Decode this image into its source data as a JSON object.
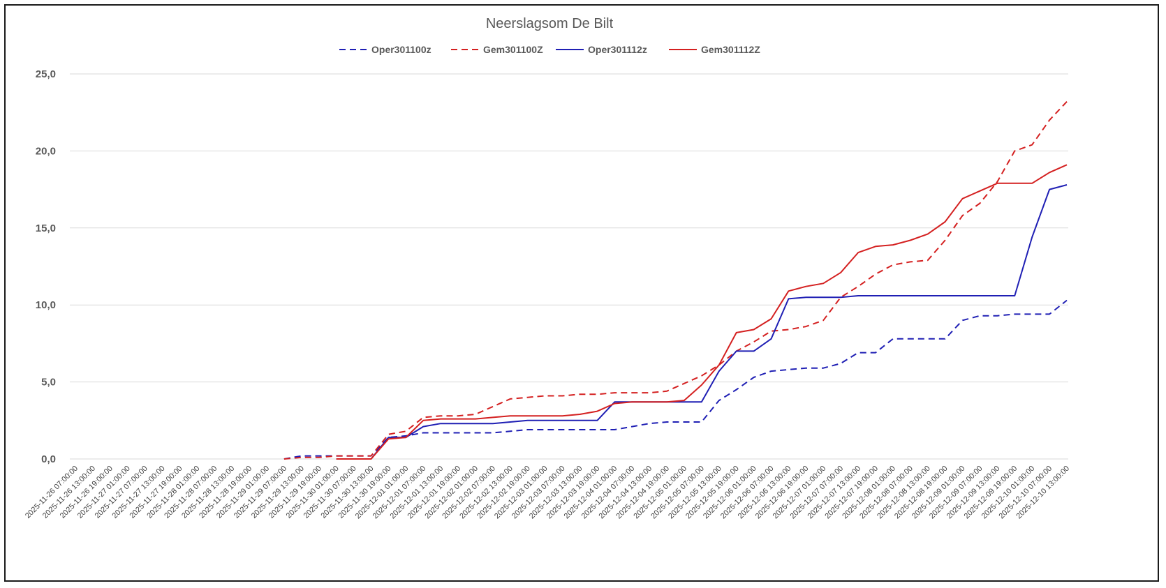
{
  "chart_data": {
    "type": "line",
    "title": "Neerslagsom De Bilt",
    "xlabel": "",
    "ylabel": "",
    "ylim": [
      0,
      25
    ],
    "yticks": [
      "0,0",
      "5,0",
      "10,0",
      "15,0",
      "20,0",
      "25,0"
    ],
    "grid": true,
    "legend_position": "top",
    "categories": [
      "2025-11-26 07:00:00",
      "2025-11-26 13:00:00",
      "2025-11-26 19:00:00",
      "2025-11-27 01:00:00",
      "2025-11-27 07:00:00",
      "2025-11-27 13:00:00",
      "2025-11-27 19:00:00",
      "2025-11-28 01:00:00",
      "2025-11-28 07:00:00",
      "2025-11-28 13:00:00",
      "2025-11-28 19:00:00",
      "2025-11-29 01:00:00",
      "2025-11-29 07:00:00",
      "2025-11-29 13:00:00",
      "2025-11-29 19:00:00",
      "2025-11-30 01:00:00",
      "2025-11-30 07:00:00",
      "2025-11-30 13:00:00",
      "2025-11-30 19:00:00",
      "2025-12-01 01:00:00",
      "2025-12-01 07:00:00",
      "2025-12-01 13:00:00",
      "2025-12-01 19:00:00",
      "2025-12-02 01:00:00",
      "2025-12-02 07:00:00",
      "2025-12-02 13:00:00",
      "2025-12-02 19:00:00",
      "2025-12-03 01:00:00",
      "2025-12-03 07:00:00",
      "2025-12-03 13:00:00",
      "2025-12-03 19:00:00",
      "2025-12-04 01:00:00",
      "2025-12-04 07:00:00",
      "2025-12-04 13:00:00",
      "2025-12-04 19:00:00",
      "2025-12-05 01:00:00",
      "2025-12-05 07:00:00",
      "2025-12-05 13:00:00",
      "2025-12-05 19:00:00",
      "2025-12-06 01:00:00",
      "2025-12-06 07:00:00",
      "2025-12-06 13:00:00",
      "2025-12-06 19:00:00",
      "2025-12-07 01:00:00",
      "2025-12-07 07:00:00",
      "2025-12-07 13:00:00",
      "2025-12-07 19:00:00",
      "2025-12-08 01:00:00",
      "2025-12-08 07:00:00",
      "2025-12-08 13:00:00",
      "2025-12-08 19:00:00",
      "2025-12-09 01:00:00",
      "2025-12-09 07:00:00",
      "2025-12-09 13:00:00",
      "2025-12-09 19:00:00",
      "2025-12-10 01:00:00",
      "2025-12-10 07:00:00",
      "2025-12-10 13:00:00"
    ],
    "series": [
      {
        "name": "Oper301100z",
        "color": "#1f1fb4",
        "style": "dashed",
        "values": [
          null,
          null,
          null,
          null,
          null,
          null,
          null,
          null,
          null,
          null,
          null,
          null,
          0.0,
          0.2,
          0.2,
          0.2,
          0.2,
          0.2,
          1.4,
          1.5,
          1.7,
          1.7,
          1.7,
          1.7,
          1.7,
          1.8,
          1.9,
          1.9,
          1.9,
          1.9,
          1.9,
          1.9,
          2.1,
          2.3,
          2.4,
          2.4,
          2.4,
          3.8,
          4.5,
          5.3,
          5.7,
          5.8,
          5.9,
          5.9,
          6.2,
          6.9,
          6.9,
          7.8,
          7.8,
          7.8,
          7.8,
          9.0,
          9.3,
          9.3,
          9.4,
          9.4,
          9.4,
          10.3
        ]
      },
      {
        "name": "Gem301100Z",
        "color": "#d42020",
        "style": "dashed",
        "values": [
          null,
          null,
          null,
          null,
          null,
          null,
          null,
          null,
          null,
          null,
          null,
          null,
          0.0,
          0.1,
          0.1,
          0.2,
          0.2,
          0.2,
          1.6,
          1.8,
          2.7,
          2.8,
          2.8,
          2.9,
          3.4,
          3.9,
          4.0,
          4.1,
          4.1,
          4.2,
          4.2,
          4.3,
          4.3,
          4.3,
          4.4,
          4.9,
          5.4,
          6.1,
          7.0,
          7.6,
          8.3,
          8.4,
          8.6,
          9.0,
          10.5,
          11.2,
          12.0,
          12.6,
          12.8,
          12.9,
          14.2,
          15.8,
          16.6,
          18.0,
          20.0,
          20.4,
          22.0,
          23.2
        ]
      },
      {
        "name": "Oper301112z",
        "color": "#1f1fb4",
        "style": "solid",
        "values": [
          null,
          null,
          null,
          null,
          null,
          null,
          null,
          null,
          null,
          null,
          null,
          null,
          null,
          null,
          null,
          0.0,
          0.0,
          0.0,
          1.4,
          1.4,
          2.1,
          2.3,
          2.3,
          2.3,
          2.3,
          2.4,
          2.5,
          2.5,
          2.5,
          2.5,
          2.5,
          3.7,
          3.7,
          3.7,
          3.7,
          3.7,
          3.7,
          5.7,
          7.0,
          7.0,
          7.8,
          10.4,
          10.5,
          10.5,
          10.5,
          10.6,
          10.6,
          10.6,
          10.6,
          10.6,
          10.6,
          10.6,
          10.6,
          10.6,
          10.6,
          14.4,
          17.5,
          17.8
        ]
      },
      {
        "name": "Gem301112Z",
        "color": "#d42020",
        "style": "solid",
        "values": [
          null,
          null,
          null,
          null,
          null,
          null,
          null,
          null,
          null,
          null,
          null,
          null,
          null,
          null,
          null,
          0.0,
          0.0,
          0.0,
          1.3,
          1.4,
          2.5,
          2.6,
          2.6,
          2.6,
          2.7,
          2.8,
          2.8,
          2.8,
          2.8,
          2.9,
          3.1,
          3.6,
          3.7,
          3.7,
          3.7,
          3.8,
          4.8,
          6.1,
          8.2,
          8.4,
          9.1,
          10.9,
          11.2,
          11.4,
          12.1,
          13.4,
          13.8,
          13.9,
          14.2,
          14.6,
          15.4,
          16.9,
          17.4,
          17.9,
          17.9,
          17.9,
          18.6,
          19.1
        ]
      }
    ]
  }
}
